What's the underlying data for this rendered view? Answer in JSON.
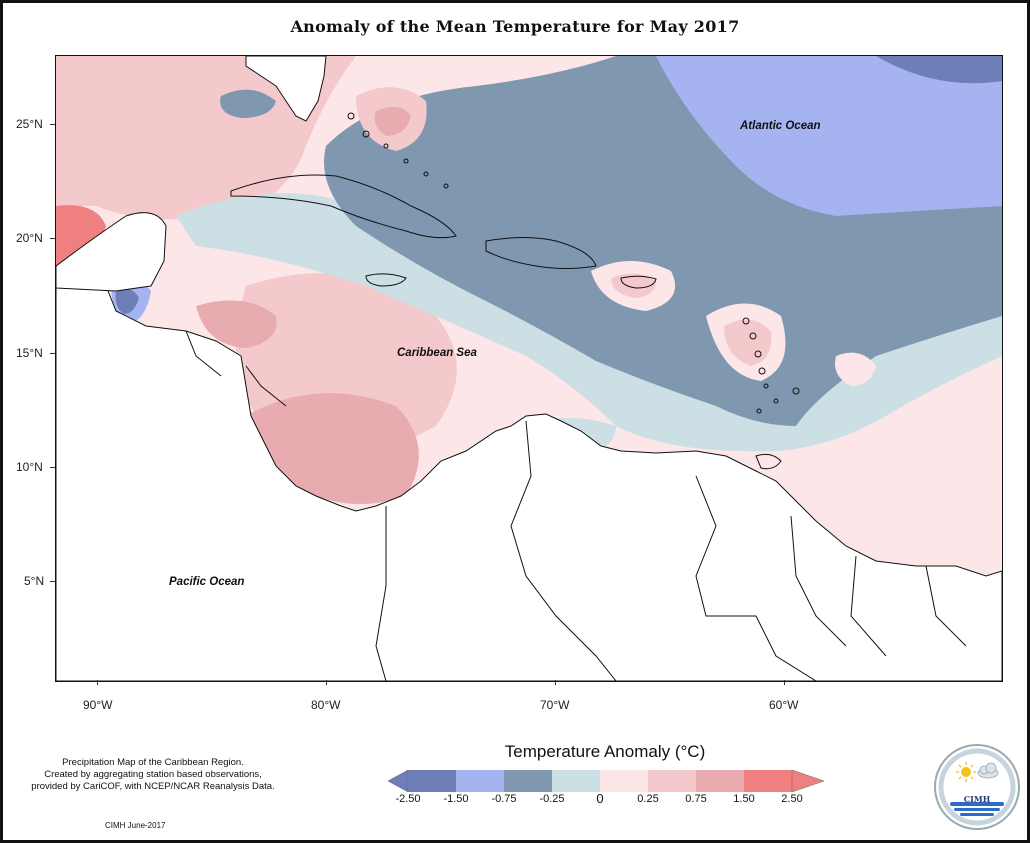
{
  "title": "Anomaly of the Mean Temperature for May 2017",
  "map": {
    "ocean_labels": {
      "atlantic": "Atlantic Ocean",
      "caribbean": "Caribbean Sea",
      "pacific": "Pacific Ocean"
    },
    "lat_ticks": [
      "25°N",
      "20°N",
      "15°N",
      "10°N",
      "5°N"
    ],
    "lon_ticks": [
      "90°W",
      "80°W",
      "70°W",
      "60°W"
    ]
  },
  "colors": {
    "strong_negative": "#6e7fb8",
    "negative": "#a5b4f0",
    "moderate_negative": "#7f98b0",
    "slight_negative": "#ccdfe5",
    "slight_positive": "#fde6e8",
    "positive": "#f4c9cc",
    "moderate_positive": "#e8acb0",
    "strong_positive": "#f08080"
  },
  "legend": {
    "title": "Temperature Anomaly (°C)",
    "labels": [
      "-2.50",
      "-1.50",
      "-0.75",
      "-0.25",
      "0",
      "0.25",
      "0.75",
      "1.50",
      "2.50"
    ],
    "bins": [
      "#6e7fb8",
      "#a5b4f0",
      "#7f98b0",
      "#ccdfe5",
      "#fde6e8",
      "#f4c9cc",
      "#e8acb0",
      "#f08080"
    ]
  },
  "caption": {
    "line1": "Precipitation Map of the Caribbean Region.",
    "line2": "Created by aggregating station based observations,",
    "line3": "provided by CariCOF, with NCEP/NCAR Reanalysis Data."
  },
  "credit": "CIMH June-2017",
  "logo": {
    "text": "CIMH",
    "icons": [
      "sun-icon",
      "cloud-icon",
      "waves-icon"
    ]
  }
}
